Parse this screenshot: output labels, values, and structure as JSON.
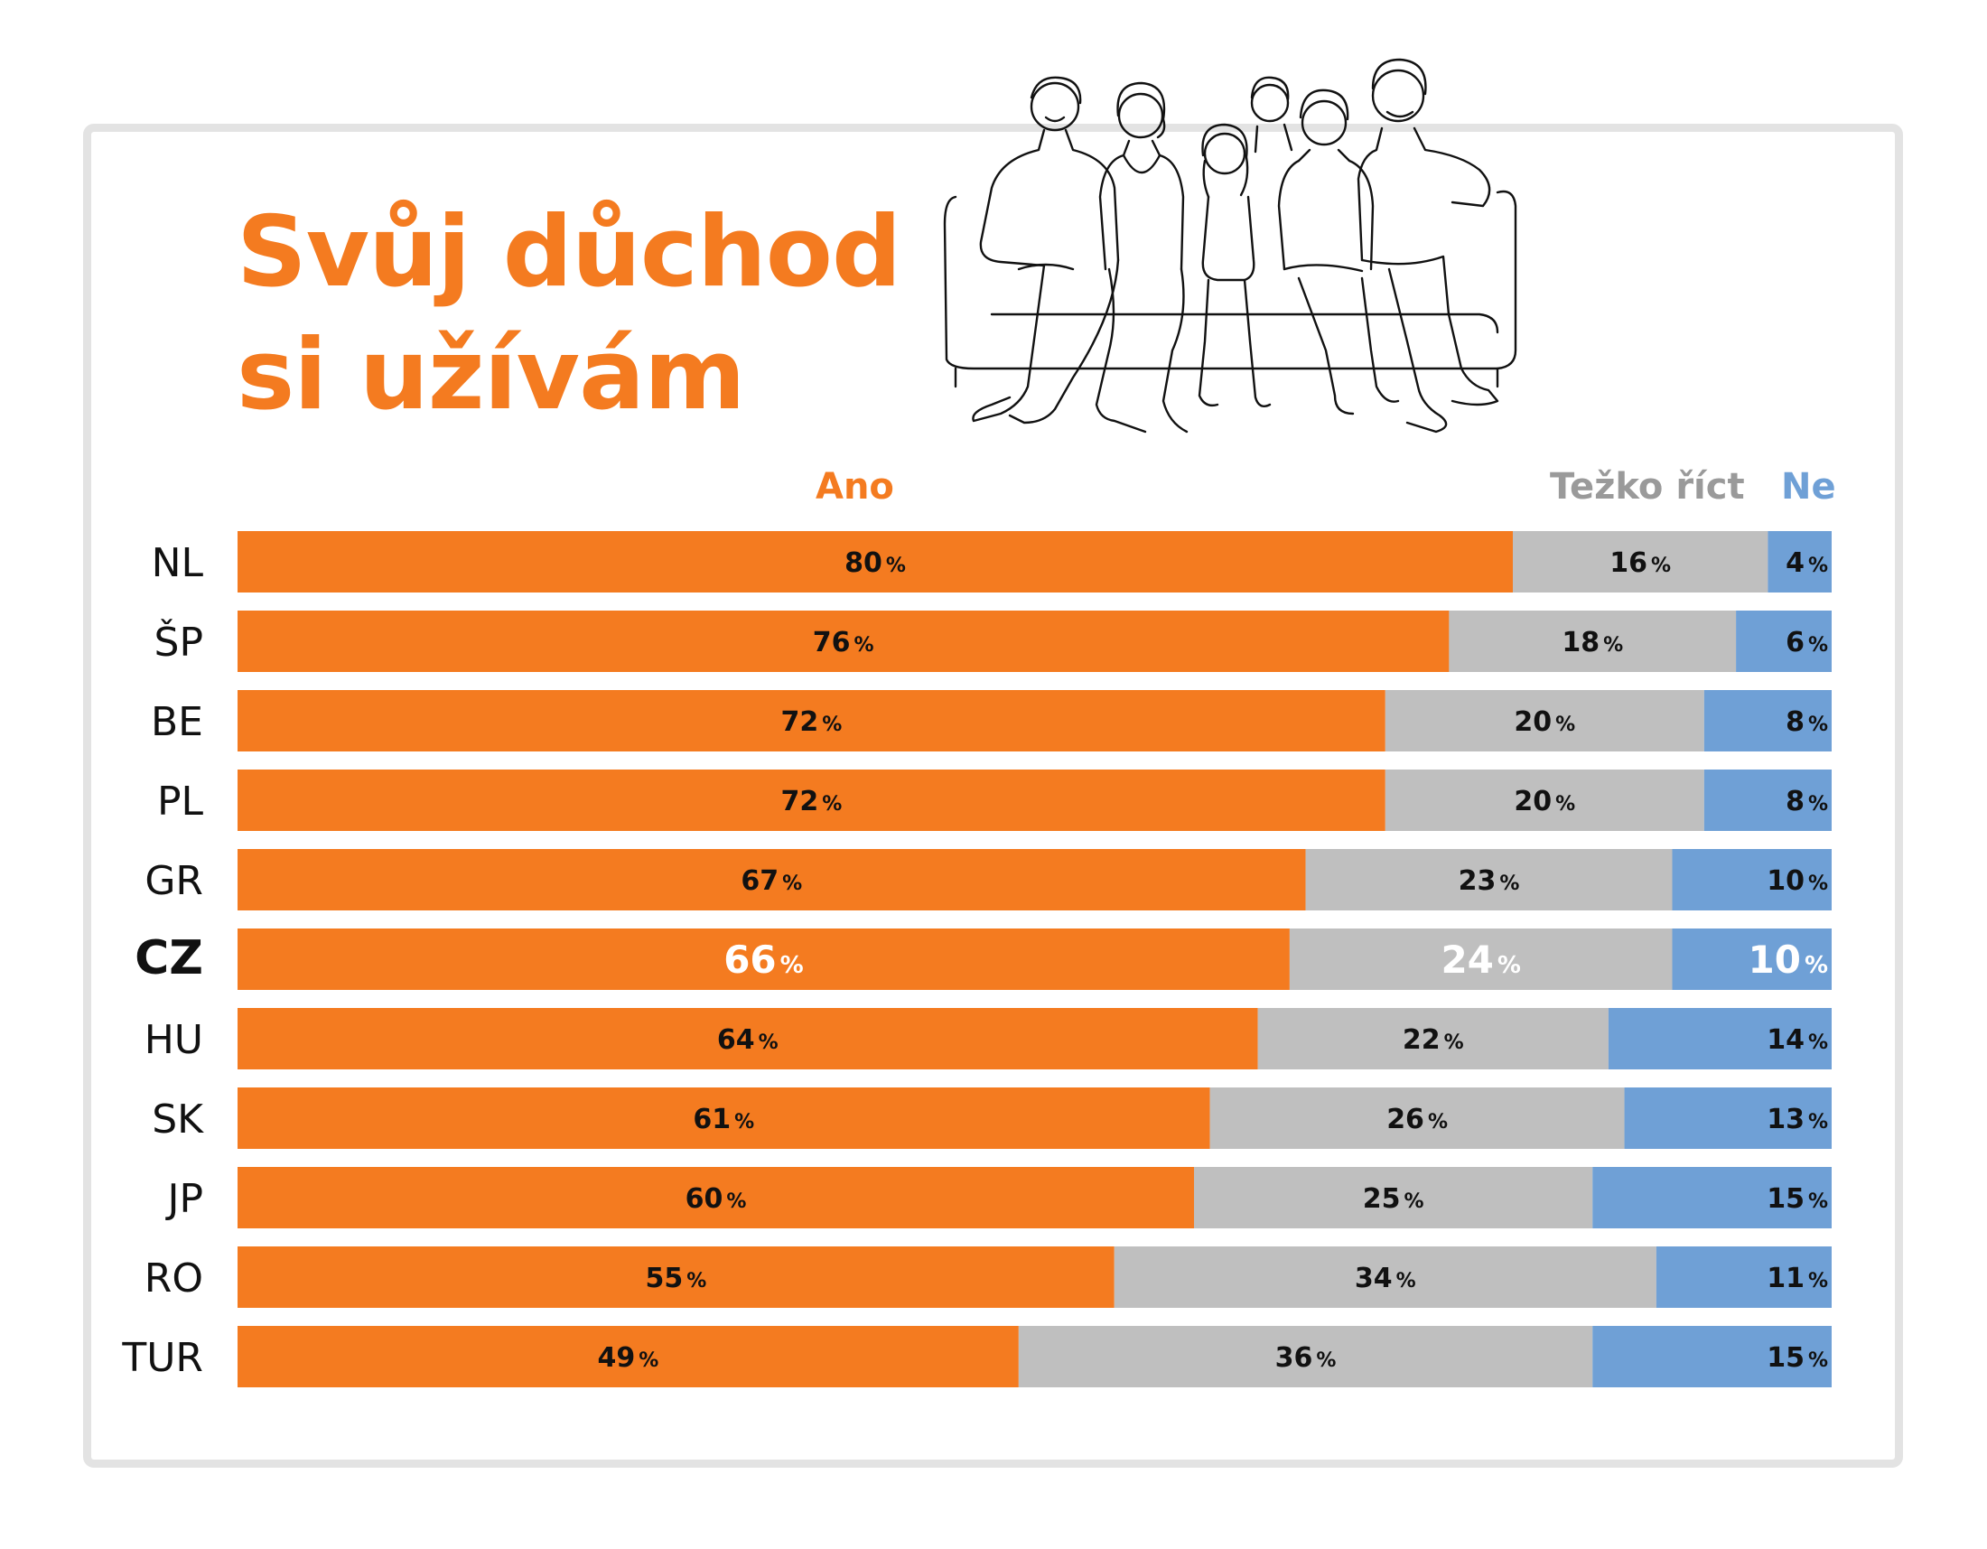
{
  "title": {
    "line1": "Svůj důchod",
    "line2": "si užívám"
  },
  "colors": {
    "yes": "#f47b20",
    "hard": "#bfbfbf",
    "no": "#6fa0d6",
    "hard_label": "#9a9a9a",
    "frame": "#e3e3e3"
  },
  "chart_data": {
    "type": "bar",
    "orientation": "horizontal",
    "stacked": true,
    "normalized": true,
    "unit_suffix": "%",
    "title": "Svůj důchod si užívám",
    "categories": [
      "NL",
      "ŠP",
      "BE",
      "PL",
      "GR",
      "CZ",
      "HU",
      "SK",
      "JP",
      "RO",
      "TUR"
    ],
    "highlighted_category": "CZ",
    "series": [
      {
        "name": "Ano",
        "color": "#f47b20",
        "values": [
          80,
          76,
          72,
          72,
          67,
          66,
          64,
          61,
          60,
          55,
          49
        ]
      },
      {
        "name": "Težko říct",
        "color": "#bfbfbf",
        "values": [
          16,
          18,
          20,
          20,
          23,
          24,
          22,
          26,
          25,
          34,
          36
        ]
      },
      {
        "name": "Ne",
        "color": "#6fa0d6",
        "values": [
          4,
          6,
          8,
          8,
          10,
          10,
          14,
          13,
          15,
          11,
          15
        ]
      }
    ],
    "legend_position": "top",
    "grid": false
  }
}
